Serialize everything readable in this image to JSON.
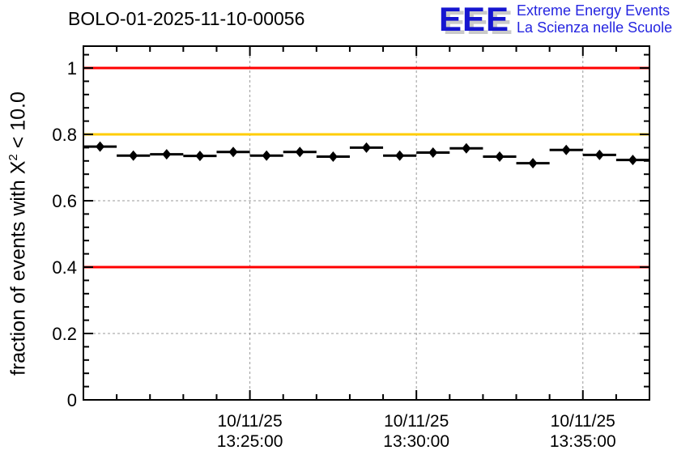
{
  "header": {
    "title": "BOLO-01-2025-11-10-00056",
    "logo": {
      "acronym": "EEE",
      "line1": "Extreme Energy Events",
      "line2": "La Scienza nelle Scuole",
      "accent_color": "#1515d0"
    }
  },
  "chart_data": {
    "type": "line",
    "title": "BOLO-01-2025-11-10-00056",
    "ylabel": "fraction of events with X^2 < 10.0",
    "ylabel_parts": {
      "pre": "fraction of events with X",
      "sup": "2",
      "post": " < 10.0"
    },
    "xlabel": "",
    "x_start_time": "13:20:00",
    "x_end_time": "13:37:00",
    "x_date": "10/11/25",
    "bin_width_seconds": 60,
    "points": [
      {
        "time": "13:20:30",
        "value": 0.763
      },
      {
        "time": "13:21:30",
        "value": 0.736
      },
      {
        "time": "13:22:30",
        "value": 0.74
      },
      {
        "time": "13:23:30",
        "value": 0.735
      },
      {
        "time": "13:24:30",
        "value": 0.747
      },
      {
        "time": "13:25:30",
        "value": 0.736
      },
      {
        "time": "13:26:30",
        "value": 0.747
      },
      {
        "time": "13:27:30",
        "value": 0.733
      },
      {
        "time": "13:28:30",
        "value": 0.76
      },
      {
        "time": "13:29:30",
        "value": 0.736
      },
      {
        "time": "13:30:30",
        "value": 0.745
      },
      {
        "time": "13:31:30",
        "value": 0.758
      },
      {
        "time": "13:32:30",
        "value": 0.733
      },
      {
        "time": "13:33:30",
        "value": 0.713
      },
      {
        "time": "13:34:30",
        "value": 0.753
      },
      {
        "time": "13:35:30",
        "value": 0.738
      },
      {
        "time": "13:36:30",
        "value": 0.723
      }
    ],
    "x_ticks": [
      {
        "seconds": 300,
        "date": "10/11/25",
        "time": "13:25:00"
      },
      {
        "seconds": 600,
        "date": "10/11/25",
        "time": "13:30:00"
      },
      {
        "seconds": 900,
        "date": "10/11/25",
        "time": "13:35:00"
      }
    ],
    "y_ticks": [
      {
        "value": 0.0,
        "label": "0"
      },
      {
        "value": 0.2,
        "label": "0.2"
      },
      {
        "value": 0.4,
        "label": "0.4"
      },
      {
        "value": 0.6,
        "label": "0.6"
      },
      {
        "value": 0.8,
        "label": "0.8"
      },
      {
        "value": 1.0,
        "label": "1"
      }
    ],
    "ylim": [
      0,
      1.066
    ],
    "xlim_seconds": [
      0,
      1020
    ],
    "y_minor_step": 0.04,
    "x_minor_step_seconds": 60,
    "grid": true,
    "grid_color": "#999999",
    "reference_lines": [
      {
        "y": 1.0,
        "color": "#ff0000"
      },
      {
        "y": 0.8,
        "color": "#ffcc00"
      },
      {
        "y": 0.4,
        "color": "#ff0000"
      }
    ],
    "marker": "diamond",
    "marker_color": "#000000",
    "legend": "none"
  }
}
